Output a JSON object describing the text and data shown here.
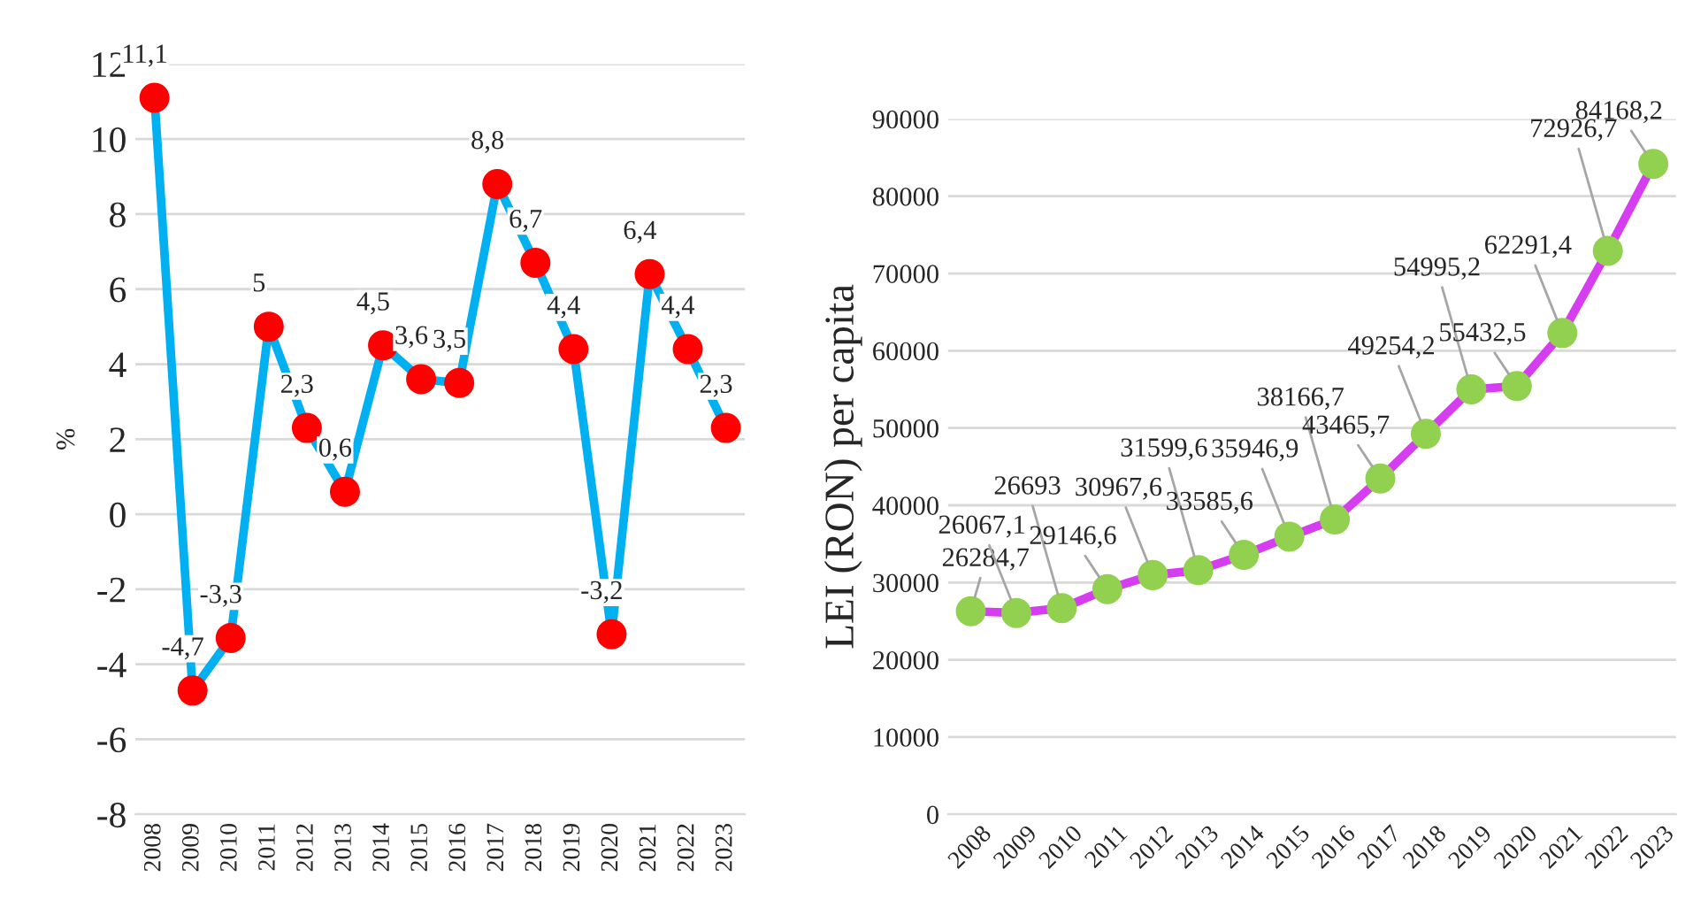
{
  "chart_data": [
    {
      "type": "line",
      "ylabel": "%",
      "categories": [
        "2008",
        "2009",
        "2010",
        "2011",
        "2012",
        "2013",
        "2014",
        "2015",
        "2016",
        "2017",
        "2018",
        "2019",
        "2020",
        "2021",
        "2022",
        "2023"
      ],
      "series": [
        {
          "color": "#00b0f0",
          "values": [
            11.1,
            -4.7,
            -3.3,
            5,
            2.3,
            0.6,
            4.5,
            3.6,
            3.5,
            8.8,
            6.7,
            4.4,
            -3.2,
            6.4,
            4.4,
            2.3
          ],
          "value_labels": [
            "11,1",
            "-4,7",
            "-3,3",
            "5",
            "2,3",
            "0,6",
            "4,5",
            "3,6",
            "3,5",
            "8,8",
            "6,7",
            "4,4",
            "-3,2",
            "6,4",
            "4,4",
            "2,3"
          ],
          "colors": [
            "#ff0000",
            "#ff0000",
            "#ff0000",
            "#ff0000",
            "#ff0000",
            "#ff0000",
            "#ff0000",
            "#ff0000",
            "#ff0000",
            "#ff0000",
            "#ff0000",
            "#ff0000",
            "#ff0000",
            "#ff0000",
            "#ff0000",
            "#ff0000"
          ]
        }
      ],
      "marker": "circle",
      "line_style": "solid",
      "ylim": [
        -8,
        12
      ],
      "yticks": [
        -8,
        -6,
        -4,
        -2,
        0,
        2,
        4,
        6,
        8,
        10,
        12
      ],
      "grid": "y",
      "legend": false
    },
    {
      "type": "line",
      "ylabel": "LEI (RON) per capita",
      "categories": [
        "2008",
        "2009",
        "2010",
        "2011",
        "2012",
        "2013",
        "2014",
        "2015",
        "2016",
        "2017",
        "2018",
        "2019",
        "2020",
        "2021",
        "2022",
        "2023"
      ],
      "series": [
        {
          "color": "#d63cf0",
          "values": [
            26284.7,
            26067.1,
            26693,
            29146.6,
            30967.6,
            31599.6,
            33585.6,
            35946.9,
            38166.7,
            43465.7,
            49254.2,
            54995.2,
            55432.5,
            62291.4,
            72926.7,
            84168.2
          ],
          "value_labels": [
            "26284,7",
            "26067,1",
            "26693",
            "29146,6",
            "30967,6",
            "31599,6",
            "33585,6",
            "35946,9",
            "38166,7",
            "43465,7",
            "49254,2",
            "54995,2",
            "55432,5",
            "62291,4",
            "72926,7",
            "84168,2"
          ],
          "colors": [
            "#92d050",
            "#92d050",
            "#92d050",
            "#92d050",
            "#92d050",
            "#92d050",
            "#92d050",
            "#92d050",
            "#92d050",
            "#92d050",
            "#92d050",
            "#92d050",
            "#92d050",
            "#92d050",
            "#92d050",
            "#92d050"
          ]
        }
      ],
      "marker": "circle",
      "line_style": "solid",
      "ylim": [
        0,
        90000
      ],
      "yticks": [
        0,
        10000,
        20000,
        30000,
        40000,
        50000,
        60000,
        70000,
        80000,
        90000
      ],
      "grid": "y",
      "legend": false
    }
  ]
}
